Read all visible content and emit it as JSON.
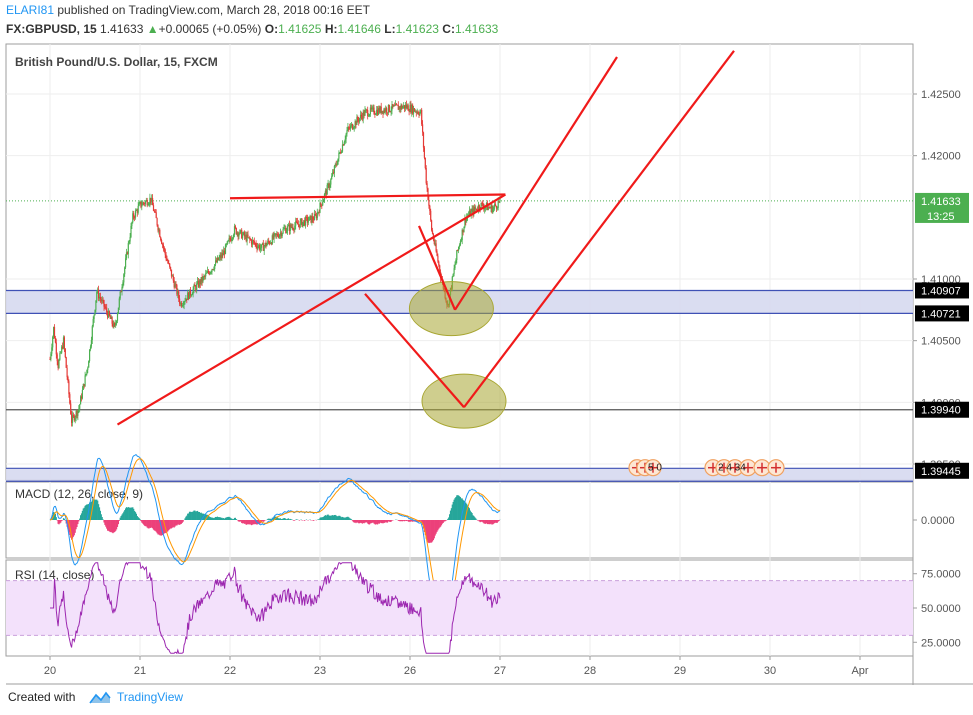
{
  "header": {
    "author": "ELARI81",
    "published_text": " published on TradingView.com, March 28, 2018 00:16 EET",
    "symbol": "FX:GBPUSD, 15",
    "last": "1.41633",
    "change": "+0.00065 (+0.05%)",
    "o_label": "O:",
    "o": "1.41625",
    "h_label": "H:",
    "h": "1.41646",
    "l_label": "L:",
    "l": "1.41623",
    "c_label": "C:",
    "c": "1.41633"
  },
  "footer": {
    "created_with": "Created with",
    "brand": "TradingView"
  },
  "chart_data": {
    "type": "line",
    "title": "British Pound/U.S. Dollar, 15, FXCM",
    "x_ticks": [
      "20",
      "21",
      "22",
      "23",
      "26",
      "27",
      "28",
      "29",
      "30",
      "Apr"
    ],
    "price_axis": {
      "ticks": [
        "1.42500",
        "1.42000",
        "1.41000",
        "1.40500",
        "1.40000",
        "1.39500"
      ],
      "ylim": [
        1.3935,
        1.4285
      ]
    },
    "price_series_anchors": [
      [
        0.0,
        1.4035
      ],
      [
        0.04,
        1.406
      ],
      [
        0.09,
        1.403
      ],
      [
        0.15,
        1.405
      ],
      [
        0.24,
        1.3985
      ],
      [
        0.32,
        1.3995
      ],
      [
        0.42,
        1.403
      ],
      [
        0.52,
        1.409
      ],
      [
        0.72,
        1.406
      ],
      [
        0.92,
        1.415
      ],
      [
        1.0,
        1.416
      ],
      [
        1.12,
        1.4165
      ],
      [
        1.28,
        1.412
      ],
      [
        1.45,
        1.408
      ],
      [
        1.7,
        1.41
      ],
      [
        1.92,
        1.412
      ],
      [
        2.05,
        1.414
      ],
      [
        2.35,
        1.4125
      ],
      [
        2.6,
        1.414
      ],
      [
        2.95,
        1.415
      ],
      [
        3.12,
        1.418
      ],
      [
        3.3,
        1.422
      ],
      [
        3.5,
        1.4235
      ],
      [
        3.95,
        1.424
      ],
      [
        4.12,
        1.4235
      ],
      [
        4.18,
        1.418
      ],
      [
        4.24,
        1.414
      ],
      [
        4.35,
        1.41
      ],
      [
        4.42,
        1.4078
      ],
      [
        4.52,
        1.412
      ],
      [
        4.62,
        1.415
      ],
      [
        4.78,
        1.416
      ],
      [
        4.92,
        1.4157
      ],
      [
        5.0,
        1.41633
      ]
    ],
    "price_labels": [
      {
        "value": 1.41633,
        "text": "1.41633",
        "sub": "13:25",
        "color": "#4caf50"
      },
      {
        "value": 1.40907,
        "text": "1.40907",
        "color": "#000000"
      },
      {
        "value": 1.40721,
        "text": "1.40721",
        "color": "#000000"
      },
      {
        "value": 1.3994,
        "text": "1.39940",
        "color": "#000000"
      },
      {
        "value": 1.39445,
        "text": "1.39445",
        "color": "#000000"
      }
    ],
    "zones": [
      {
        "top": 1.40907,
        "bottom": 1.40721,
        "fill": "#d6d9ef",
        "border": "#3f51b5"
      },
      {
        "top": 1.39465,
        "bottom": 1.3936,
        "fill": "#d6d9ef",
        "border": "#3f51b5"
      }
    ],
    "hlines": [
      {
        "value": 1.3994,
        "color": "#555555"
      }
    ],
    "drawings": [
      {
        "type": "trendline",
        "from": [
          2.0,
          1.41655
        ],
        "to": [
          5.06,
          1.41685
        ]
      },
      {
        "type": "trendline",
        "from": [
          0.75,
          1.3982
        ],
        "to": [
          5.06,
          1.41685
        ]
      },
      {
        "type": "trendline",
        "from": [
          4.1,
          1.4143
        ],
        "to": [
          4.5,
          1.4075
        ]
      },
      {
        "type": "trendline",
        "from": [
          4.5,
          1.4075
        ],
        "to": [
          6.3,
          1.428
        ]
      },
      {
        "type": "trendline",
        "from": [
          3.5,
          1.4088
        ],
        "to": [
          4.6,
          1.3996
        ]
      },
      {
        "type": "trendline",
        "from": [
          4.6,
          1.3996
        ],
        "to": [
          7.6,
          1.4285
        ]
      }
    ],
    "highlights": [
      {
        "center": [
          4.46,
          1.4076
        ]
      },
      {
        "center": [
          4.6,
          1.4001
        ]
      }
    ],
    "events": {
      "left_label": "5 0",
      "right_label": "2 4 34"
    },
    "macd": {
      "title": "MACD (12, 26, close, 9)",
      "ticks": [
        "0.0000"
      ],
      "ylim": [
        -0.0012,
        0.0012
      ]
    },
    "rsi": {
      "title": "RSI (14, close)",
      "ticks": [
        "75.0000",
        "50.0000",
        "25.0000"
      ],
      "ylim": [
        15,
        85
      ],
      "band": [
        30,
        70
      ],
      "last": 57
    },
    "colors": {
      "up": "#4caf50",
      "down": "#e53935",
      "drawing": "#f01a1a",
      "macd": "#2196f3",
      "signal": "#ff9800",
      "rsi": "#9c27b0",
      "rsi_band": "#f3e1fb",
      "highlight": "#a8a632"
    }
  }
}
